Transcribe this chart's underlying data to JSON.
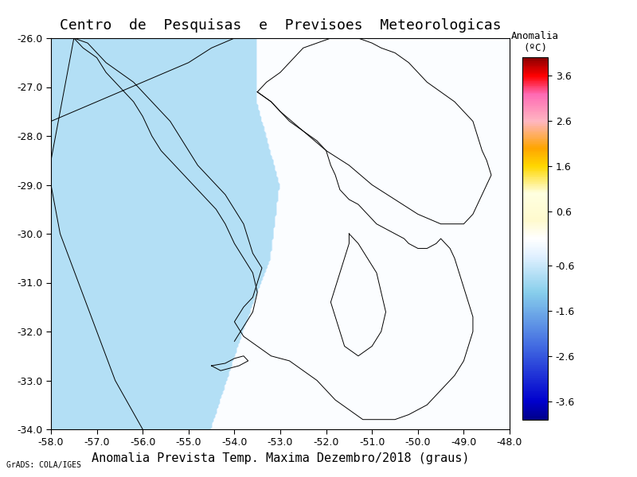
{
  "title": "Centro  de  Pesquisas  e  Previsoes  Meteorologicas",
  "xlabel": "Anomalia Prevista Temp. Maxima Dezembro/2018 (graus)",
  "credit": "GrADS: COLA/IGES",
  "xlim": [
    -58.0,
    -48.0
  ],
  "ylim": [
    -34.0,
    -26.0
  ],
  "xticks": [
    -58.0,
    -57.0,
    -56.0,
    -55.0,
    -54.0,
    -53.0,
    -52.0,
    -51.0,
    -50.0,
    -49.0,
    -48.0
  ],
  "yticks": [
    -34.0,
    -33.0,
    -32.0,
    -31.0,
    -30.0,
    -29.0,
    -28.0,
    -27.0,
    -26.0
  ],
  "colorbar_label": "Anomalia\n(ºC)",
  "colorbar_ticks": [
    3.6,
    2.6,
    1.6,
    0.6,
    -0.6,
    -1.6,
    -2.6,
    -3.6
  ],
  "vmin": -4.0,
  "vmax": 4.0,
  "bg_color": "#ffffff",
  "map_bg": "#ffffff",
  "anomaly_color_light_blue": "#add8e6",
  "title_fontsize": 13,
  "label_fontsize": 11
}
